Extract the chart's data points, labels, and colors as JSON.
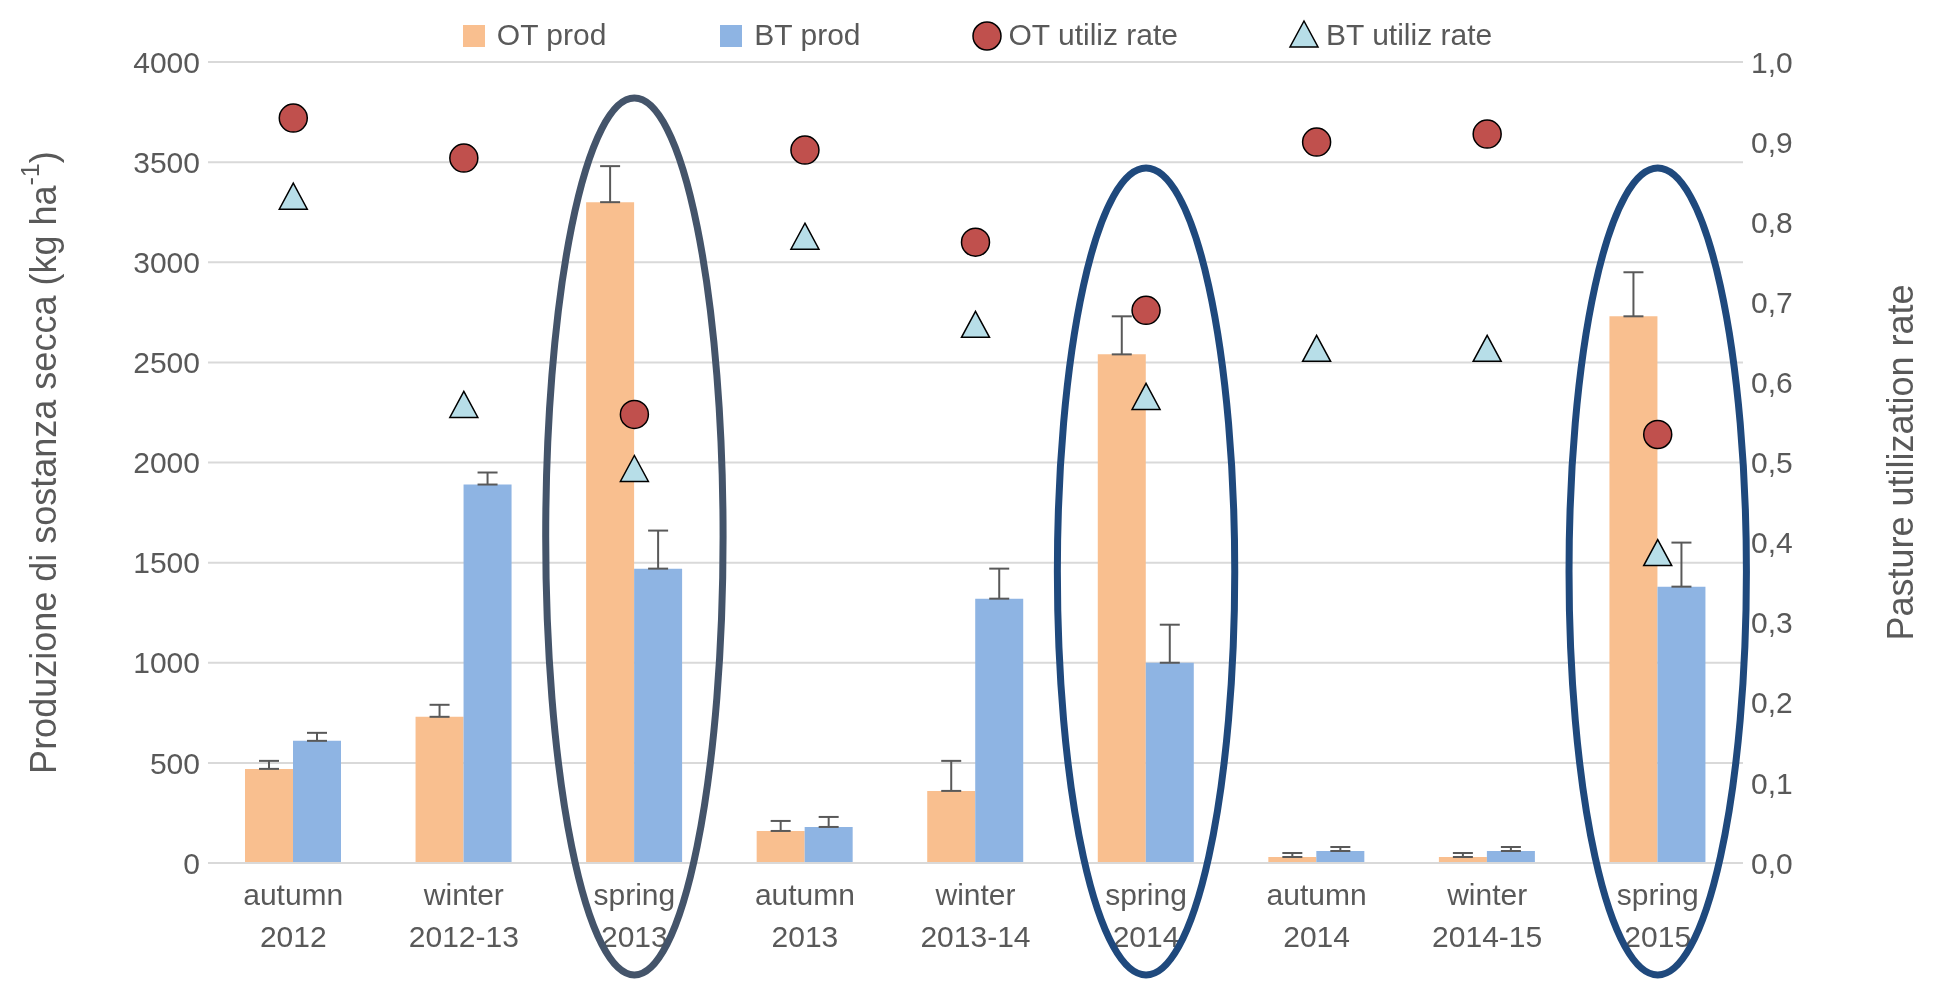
{
  "chart_data": {
    "type": "bar",
    "ylabel": "Produzione di sostanza secca (kg ha$^{-1}$)",
    "y2label": "Pasture utilization rate",
    "categories": [
      "autumn 2012",
      "winter 2012-13",
      "spring 2013",
      "autumn 2013",
      "winter 2013-14",
      "spring 2014",
      "autumn 2014",
      "winter 2014-15",
      "spring 2015"
    ],
    "series": [
      {
        "name": "OT prod",
        "color": "#f9bf8f",
        "values": [
          470,
          730,
          3300,
          160,
          360,
          2540,
          30,
          30,
          2730
        ],
        "errors": [
          [
            470,
            510
          ],
          [
            730,
            790
          ],
          [
            3300,
            3480
          ],
          [
            160,
            210
          ],
          [
            360,
            510
          ],
          [
            2540,
            2730
          ],
          [
            30,
            50
          ],
          [
            30,
            50
          ],
          [
            2730,
            2950
          ]
        ]
      },
      {
        "name": "BT prod",
        "color": "#8eb4e3",
        "values": [
          610,
          1890,
          1470,
          180,
          1320,
          1000,
          60,
          60,
          1380
        ],
        "errors": [
          [
            610,
            650
          ],
          [
            1890,
            1950
          ],
          [
            1470,
            1660
          ],
          [
            180,
            230
          ],
          [
            1320,
            1470
          ],
          [
            1000,
            1190
          ],
          [
            60,
            80
          ],
          [
            60,
            80
          ],
          [
            1380,
            1600
          ]
        ]
      },
      {
        "name": "OT utiliz rate",
        "type": "scatter",
        "axis": "y2",
        "marker": "circle",
        "color": "#c0504d",
        "values": [
          0.93,
          0.88,
          0.56,
          0.89,
          0.775,
          0.69,
          0.9,
          0.91,
          0.535
        ]
      },
      {
        "name": "BT utiliz rate",
        "type": "scatter",
        "axis": "y2",
        "marker": "triangle",
        "color": "#b7dee8",
        "values": [
          0.83,
          0.57,
          0.49,
          0.78,
          0.67,
          0.58,
          0.64,
          0.64,
          0.385
        ]
      }
    ],
    "ylim": [
      0,
      4000
    ],
    "yticks": [
      0,
      500,
      1000,
      1500,
      2000,
      2500,
      3000,
      3500,
      4000
    ],
    "y2lim": [
      0,
      1
    ],
    "y2ticks": [
      {
        "value": 0,
        "label": "0,0"
      },
      {
        "value": 0.1,
        "label": "0,1"
      },
      {
        "value": 0.2,
        "label": "0,2"
      },
      {
        "value": 0.3,
        "label": "0,3"
      },
      {
        "value": 0.4,
        "label": "0,4"
      },
      {
        "value": 0.5,
        "label": "0,5"
      },
      {
        "value": 0.6,
        "label": "0,6"
      },
      {
        "value": 0.7,
        "label": "0,7"
      },
      {
        "value": 0.8,
        "label": "0,8"
      },
      {
        "value": 0.9,
        "label": "0,9"
      },
      {
        "value": 1,
        "label": "1,0"
      }
    ],
    "grid": "y",
    "legend": "top"
  }
}
